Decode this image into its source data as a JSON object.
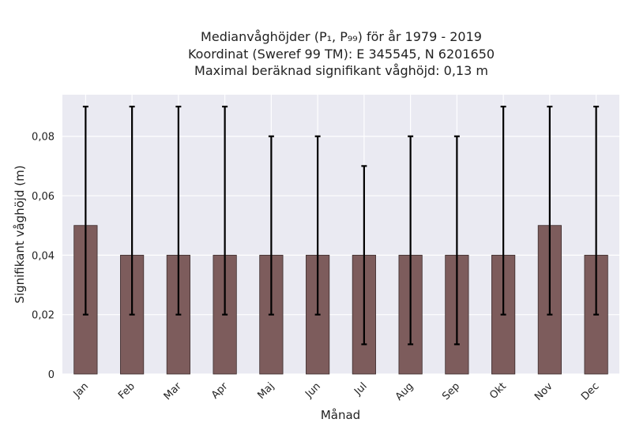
{
  "chart_data": {
    "type": "bar",
    "title_lines": [
      "Medianvåghöjder (P₁, P₉₉) för år 1979 - 2019",
      "Koordinat (Sweref 99 TM): E 345545, N 6201650",
      "Maximal beräknad signifikant våghöjd: 0,13 m"
    ],
    "xlabel": "Månad",
    "ylabel": "Signifikant våghöjd (m)",
    "categories": [
      "Jan",
      "Feb",
      "Mar",
      "Apr",
      "Maj",
      "Jun",
      "Jul",
      "Aug",
      "Sep",
      "Okt",
      "Nov",
      "Dec"
    ],
    "values": [
      0.05,
      0.04,
      0.04,
      0.04,
      0.04,
      0.04,
      0.04,
      0.04,
      0.04,
      0.04,
      0.05,
      0.04
    ],
    "error_low": [
      0.02,
      0.02,
      0.02,
      0.02,
      0.02,
      0.02,
      0.01,
      0.01,
      0.01,
      0.02,
      0.02,
      0.02
    ],
    "error_high": [
      0.09,
      0.09,
      0.09,
      0.09,
      0.08,
      0.08,
      0.07,
      0.08,
      0.08,
      0.09,
      0.09,
      0.09
    ],
    "ylim": [
      0,
      0.094
    ],
    "yticks": [
      0,
      0.02,
      0.04,
      0.06,
      0.08
    ],
    "ytick_labels": [
      "0",
      "0,02",
      "0,04",
      "0,06",
      "0,08"
    ],
    "grid": true,
    "colors": {
      "bar": "#7d5c5c",
      "bar_edge": "#3b2b2b",
      "plot_background": "#eaeaf2",
      "grid": "#ffffff",
      "error_bar": "#000000"
    }
  }
}
